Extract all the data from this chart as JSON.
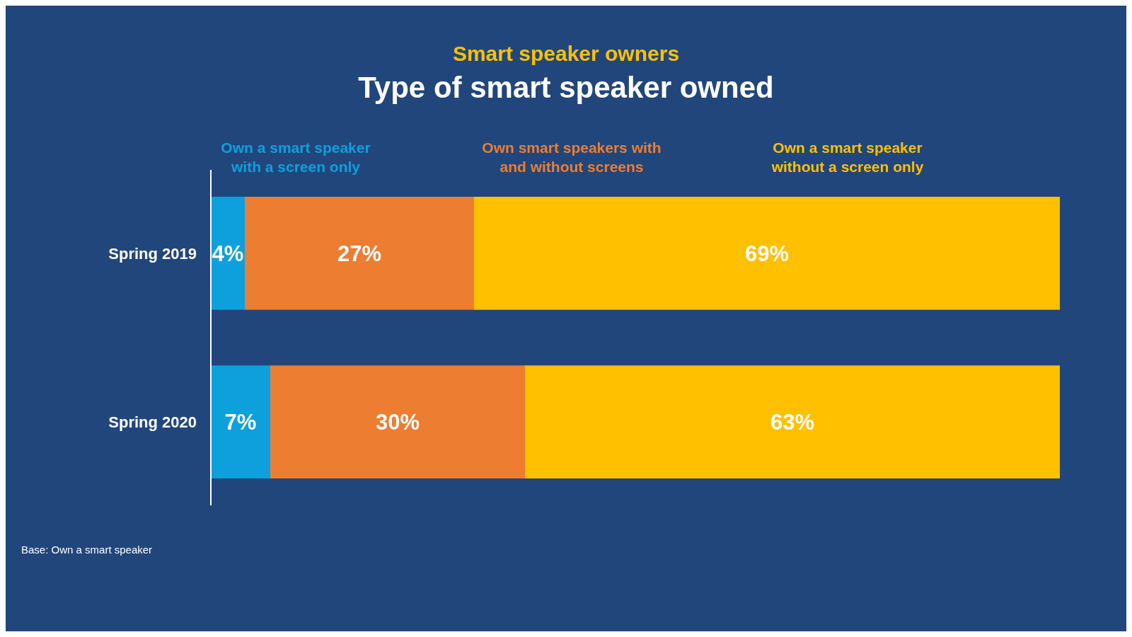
{
  "chart_data": {
    "type": "bar",
    "orientation": "horizontal",
    "stacked": true,
    "subtitle": "Smart speaker owners",
    "title": "Type of smart speaker owned",
    "categories": [
      "Spring 2019",
      "Spring 2020"
    ],
    "series": [
      {
        "name": "Own a smart speaker with a screen only",
        "color": "#0ea0dd",
        "values": [
          4,
          7
        ],
        "value_labels": [
          "4%",
          "7%"
        ]
      },
      {
        "name": "Own smart speakers with and without screens",
        "color": "#ed7d31",
        "values": [
          27,
          30
        ],
        "value_labels": [
          "27%",
          "30%"
        ]
      },
      {
        "name": "Own a smart speaker without a screen only",
        "color": "#ffc000",
        "values": [
          69,
          63
        ],
        "value_labels": [
          "69%",
          "63%"
        ]
      }
    ],
    "tick_labels": "y",
    "legend": "top",
    "annotations": [
      "Base: Own a smart speaker"
    ]
  }
}
